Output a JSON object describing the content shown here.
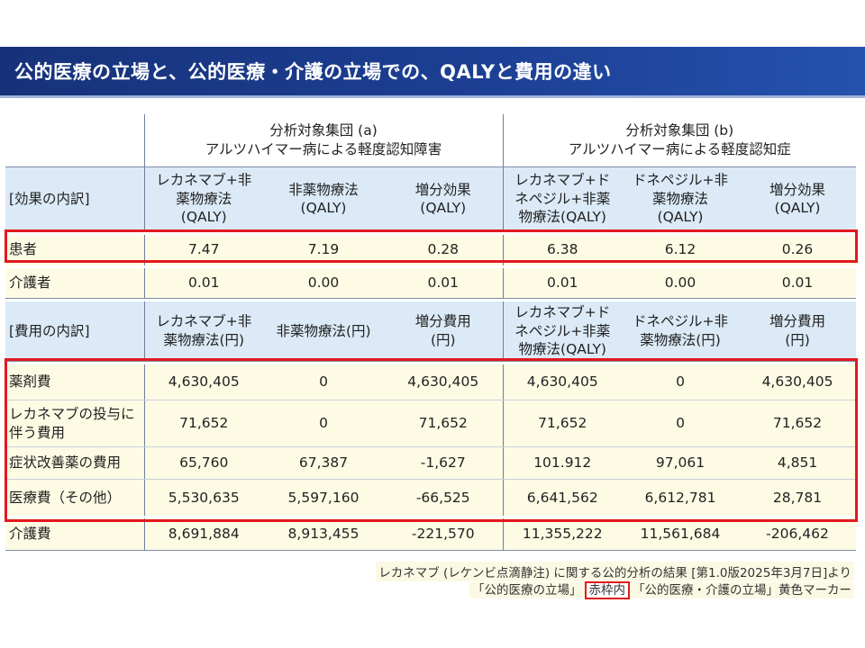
{
  "title": "公的医療の立場と、公的医療・介護の立場での、QALYと費用の違い",
  "groups": {
    "a_line1": "分析対象集団 (a)",
    "a_line2": "アルツハイマー病による軽度認知障害",
    "b_line1": "分析対象集団 (b)",
    "b_line2": "アルツハイマー病による軽度認知症"
  },
  "effect_header": {
    "label": "[効果の内訳]",
    "a1": [
      "レカネマブ+非",
      "薬物療法",
      "(QALY)"
    ],
    "a2": [
      "非薬物療法",
      "(QALY)"
    ],
    "a3": [
      "増分効果",
      "(QALY)"
    ],
    "b1": [
      "レカネマブ+ド",
      "ネペジル+非薬",
      "物療法(QALY)"
    ],
    "b2": [
      "ドネペジル+非",
      "薬物療法",
      "(QALY)"
    ],
    "b3": [
      "増分効果",
      "(QALY)"
    ]
  },
  "effect_rows": [
    {
      "label": "患者",
      "values": [
        "7.47",
        "7.19",
        "0.28",
        "6.38",
        "6.12",
        "0.26"
      ]
    },
    {
      "label": "介護者",
      "values": [
        "0.01",
        "0.00",
        "0.01",
        "0.01",
        "0.00",
        "0.01"
      ]
    }
  ],
  "cost_header": {
    "label": "[費用の内訳]",
    "a1": [
      "レカネマブ+非",
      "薬物療法(円)"
    ],
    "a2": [
      "非薬物療法(円)"
    ],
    "a3": [
      "増分費用",
      "(円)"
    ],
    "b1": [
      "レカネマブ+ド",
      "ネペジル+非薬",
      "物療法(QALY)"
    ],
    "b2": [
      "ドネペジル+非",
      "薬物療法(円)"
    ],
    "b3": [
      "増分費用",
      "(円)"
    ]
  },
  "cost_rows": [
    {
      "label": "薬剤費",
      "values": [
        "4,630,405",
        "0",
        "4,630,405",
        "4,630,405",
        "0",
        "4,630,405"
      ]
    },
    {
      "label": "レカネマブの投与に伴う費用",
      "values": [
        "71,652",
        "0",
        "71,652",
        "71,652",
        "0",
        "71,652"
      ]
    },
    {
      "label": "症状改善薬の費用",
      "values": [
        "65,760",
        "67,387",
        "-1,627",
        "101.912",
        "97,061",
        "4,851"
      ]
    },
    {
      "label": "医療費（その他）",
      "values": [
        "5,530,635",
        "5,597,160",
        "-66,525",
        "6,641,562",
        "6,612,781",
        "28,781"
      ]
    },
    {
      "label": "介護費",
      "values": [
        "8,691,884",
        "8,913,455",
        "-221,570",
        "11,355,222",
        "11,561,684",
        "-206,462"
      ]
    }
  ],
  "footer": {
    "source": "レカネマブ (レケンビ点滴静注) に関する公的分析の結果 [第1.0版2025年3月7日]より",
    "legend_part1": "「公的医療の立場」",
    "legend_red": "赤枠内",
    "legend_part2": "「公的医療・介護の立場」黄色マーカー"
  },
  "colors": {
    "title_bg": "#1c3f93",
    "header_row_bg": "#dbeaf6",
    "yellow_marker": "#fdfbe4",
    "red_frame": "#e2191f"
  }
}
